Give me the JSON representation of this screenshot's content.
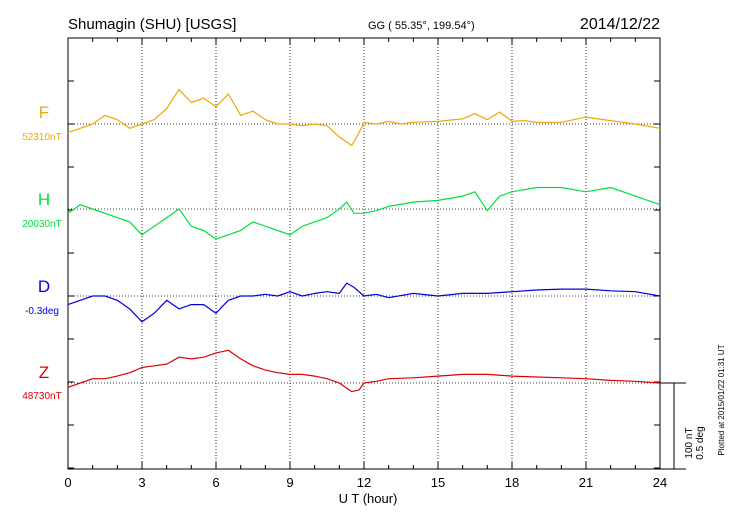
{
  "header": {
    "title": "Shumagin (SHU)  [USGS]",
    "coords": "GG ( 55.35°, 199.54°)",
    "date": "2014/12/22"
  },
  "side_note": "Plotted at 2015/01/22 01:31  UT",
  "scale_bar": {
    "nt_label": "100 nT",
    "deg_label": "0.5 deg"
  },
  "chart_data": {
    "type": "line",
    "title": "Shumagin (SHU)  [USGS]",
    "xlabel": "U T (hour)",
    "ylabel": "",
    "xlim": [
      0,
      24
    ],
    "x_ticks": [
      0,
      3,
      6,
      9,
      12,
      15,
      18,
      21,
      24
    ],
    "x_tick_labels": [
      "0",
      "3",
      "6",
      "9",
      "12",
      "15",
      "18",
      "21",
      "24"
    ],
    "grid": true,
    "units_note": "offsets relative to each component baseline; scale 100 nT (0.5 deg) per bar",
    "series": [
      {
        "name": "F",
        "baseline_label": "52310nT",
        "color": "#f0a800",
        "x": [
          0,
          0.5,
          1,
          1.5,
          2,
          2.5,
          3,
          3.5,
          4,
          4.5,
          5,
          5.5,
          6,
          6.5,
          7,
          7.5,
          8,
          8.5,
          9,
          9.5,
          10,
          10.5,
          11,
          11.5,
          11.8,
          12,
          12.5,
          13,
          13.5,
          14,
          15,
          16,
          16.5,
          17,
          17.5,
          18,
          18.5,
          19,
          20,
          21,
          22,
          23,
          24
        ],
        "values": [
          -10,
          -5,
          0,
          10,
          5,
          -5,
          0,
          5,
          18,
          40,
          25,
          30,
          20,
          35,
          10,
          15,
          5,
          0,
          0,
          -2,
          0,
          -2,
          -15,
          -25,
          -10,
          2,
          0,
          3,
          0,
          2,
          3,
          6,
          12,
          5,
          14,
          3,
          4,
          2,
          2,
          8,
          4,
          0,
          -5
        ]
      },
      {
        "name": "H",
        "baseline_label": "20030nT",
        "color": "#00e040",
        "x": [
          0,
          0.5,
          1,
          1.5,
          2,
          2.5,
          3,
          3.5,
          4,
          4.5,
          5,
          5.5,
          6,
          6.5,
          7,
          7.5,
          8,
          8.5,
          9,
          9.5,
          10,
          10.5,
          11,
          11.3,
          11.6,
          12,
          12.5,
          13,
          14,
          15,
          16,
          16.5,
          17,
          17.5,
          18,
          19,
          20,
          21,
          22,
          23,
          24
        ],
        "values": [
          -5,
          5,
          0,
          -5,
          -10,
          -15,
          -30,
          -20,
          -10,
          0,
          -20,
          -25,
          -35,
          -30,
          -25,
          -15,
          -20,
          -25,
          -30,
          -20,
          -15,
          -10,
          0,
          8,
          -5,
          -5,
          -2,
          3,
          8,
          10,
          15,
          20,
          -2,
          15,
          20,
          25,
          25,
          20,
          25,
          15,
          5
        ]
      },
      {
        "name": "D",
        "baseline_label": "-0.3deg",
        "color": "#0000e0",
        "x": [
          0,
          0.5,
          1,
          1.5,
          2,
          2.5,
          3,
          3.5,
          4,
          4.5,
          5,
          5.5,
          6,
          6.5,
          7,
          7.5,
          8,
          8.5,
          9,
          9.5,
          10,
          10.5,
          11,
          11.3,
          11.6,
          12,
          12.5,
          13,
          14,
          15,
          16,
          17,
          18,
          19,
          20,
          21,
          22,
          23,
          24
        ],
        "values": [
          -10,
          -5,
          0,
          0,
          -5,
          -15,
          -30,
          -20,
          -5,
          -15,
          -10,
          -10,
          -20,
          -5,
          0,
          0,
          2,
          0,
          5,
          0,
          3,
          5,
          3,
          15,
          10,
          0,
          2,
          -2,
          3,
          0,
          3,
          3,
          5,
          7,
          8,
          8,
          6,
          5,
          0
        ]
      },
      {
        "name": "Z",
        "baseline_label": "48730nT",
        "color": "#e00000",
        "x": [
          0,
          0.5,
          1,
          1.5,
          2,
          2.5,
          3,
          3.5,
          4,
          4.5,
          5,
          5.5,
          6,
          6.5,
          7,
          7.5,
          8,
          8.5,
          9,
          9.5,
          10,
          10.5,
          11,
          11.5,
          11.8,
          12,
          12.5,
          13,
          14,
          15,
          16,
          17,
          18,
          19,
          20,
          21,
          22,
          23,
          24
        ],
        "values": [
          -5,
          0,
          5,
          5,
          8,
          12,
          18,
          20,
          22,
          30,
          28,
          30,
          35,
          38,
          28,
          20,
          15,
          12,
          10,
          10,
          8,
          5,
          0,
          -10,
          -8,
          0,
          2,
          5,
          6,
          8,
          10,
          10,
          8,
          7,
          6,
          5,
          3,
          2,
          0
        ]
      }
    ]
  }
}
